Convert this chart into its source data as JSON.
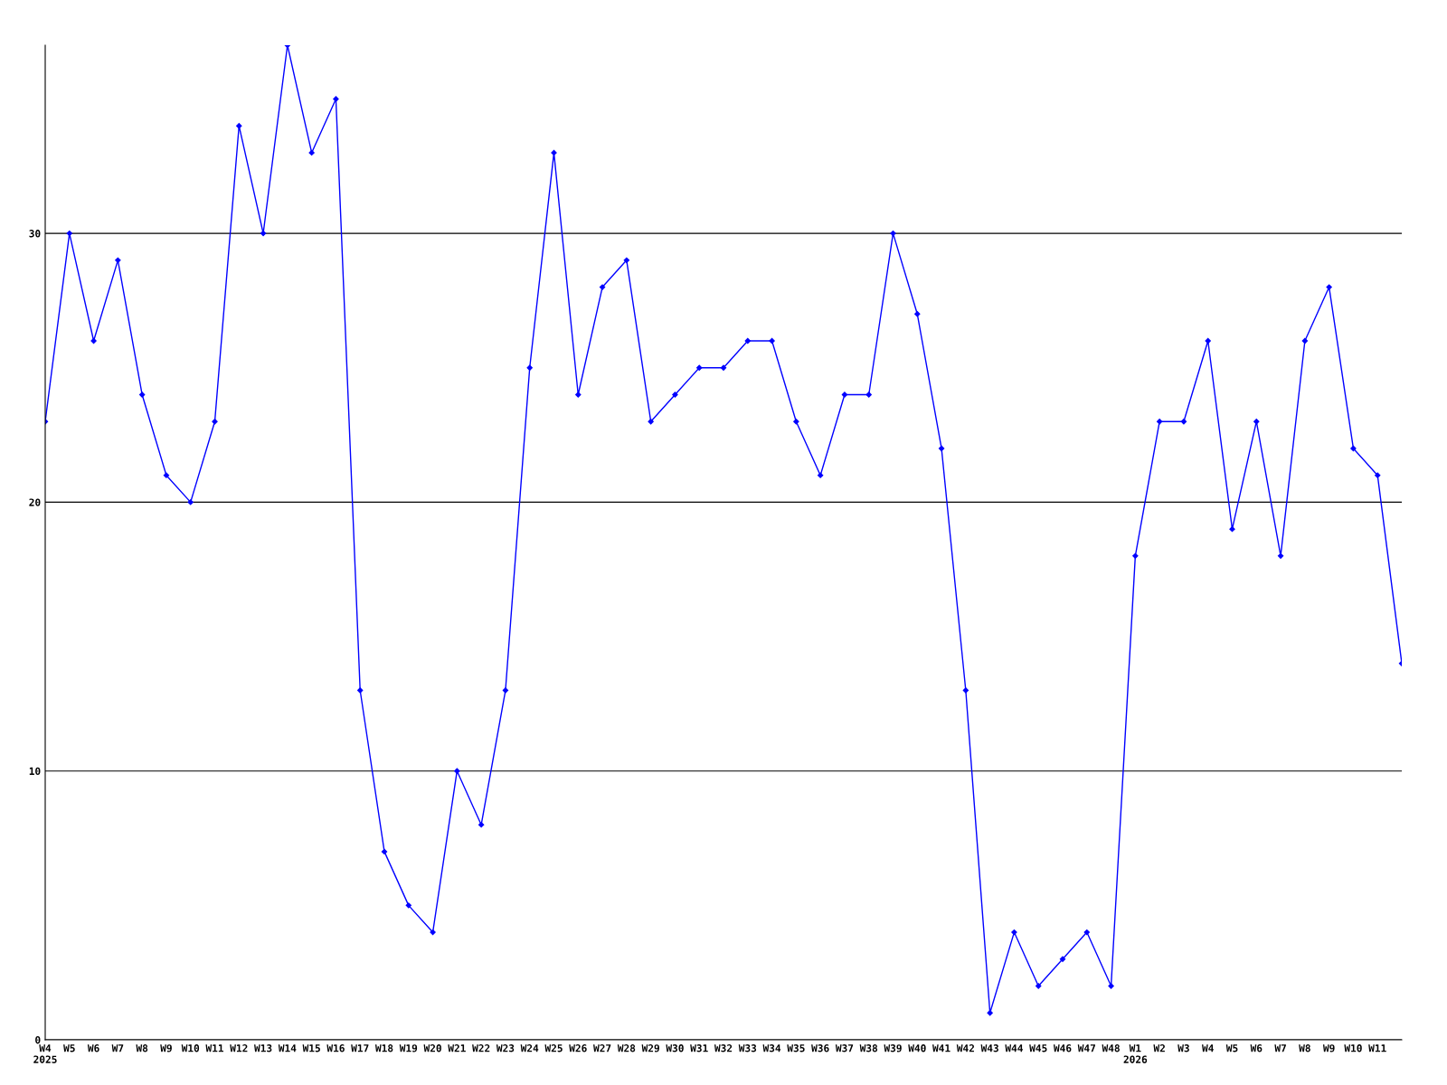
{
  "chart_data": {
    "type": "line",
    "categories": [
      "W4\n2025",
      "W5",
      "W6",
      "W7",
      "W8",
      "W9",
      "W10",
      "W11",
      "W12",
      "W13",
      "W14",
      "W15",
      "W16",
      "W17",
      "W18",
      "W19",
      "W20",
      "W21",
      "W22",
      "W23",
      "W24",
      "W25",
      "W26",
      "W27",
      "W28",
      "W29",
      "W30",
      "W31",
      "W32",
      "W33",
      "W34",
      "W35",
      "W36",
      "W37",
      "W38",
      "W39",
      "W40",
      "W41",
      "W42",
      "W43",
      "W44",
      "W45",
      "W46",
      "W47",
      "W48",
      "W1\n2026",
      "W2",
      "W3",
      "W4",
      "W5",
      "W6",
      "W7",
      "W8",
      "W9",
      "W10",
      "W11",
      null
    ],
    "series": [
      {
        "color": "#0000ff",
        "values": [
          23,
          30,
          26,
          29,
          24,
          21,
          20,
          23,
          34,
          30,
          37,
          33,
          35,
          13,
          7,
          5,
          4,
          10,
          8,
          13,
          25,
          33,
          24,
          28,
          29,
          23,
          24,
          25,
          25,
          26,
          26,
          23,
          21,
          24,
          24,
          30,
          27,
          22,
          13,
          1,
          4,
          2,
          3,
          4,
          2,
          18,
          23,
          23,
          26,
          19,
          23,
          18,
          26,
          28,
          22,
          21,
          14
        ]
      }
    ],
    "ylim": [
      0,
      37
    ],
    "yticks": [
      0,
      10,
      20,
      30
    ],
    "grid": "y",
    "marker": "diamond",
    "line_style": "solid"
  }
}
